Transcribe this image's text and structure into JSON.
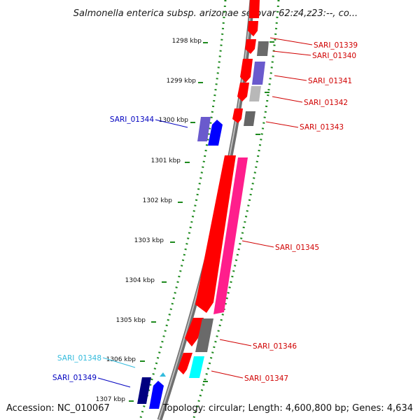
{
  "title": "Salmonella enterica subsp. arizonae serovar 62:z4,z23:--, co...",
  "footer": {
    "accession": "Accession: NC_010067",
    "summary": "Topology: circular; Length: 4,600,800 bp; Genes: 4,634"
  },
  "ticks": [
    "1298 kbp",
    "1299 kbp",
    "1300 kbp",
    "1301 kbp",
    "1302 kbp",
    "1303 kbp",
    "1304 kbp",
    "1305 kbp",
    "1306 kbp",
    "1307 kbp"
  ],
  "gene_labels": [
    {
      "text": "SARI_01339",
      "color": "#d00000"
    },
    {
      "text": "SARI_01340",
      "color": "#d00000"
    },
    {
      "text": "SARI_01341",
      "color": "#d00000"
    },
    {
      "text": "SARI_01342",
      "color": "#d00000"
    },
    {
      "text": "SARI_01343",
      "color": "#d00000"
    },
    {
      "text": "SARI_01344",
      "color": "#0000c0"
    },
    {
      "text": "SARI_01345",
      "color": "#d00000"
    },
    {
      "text": "SARI_01346",
      "color": "#d00000"
    },
    {
      "text": "SARI_01347",
      "color": "#d00000"
    },
    {
      "text": "SARI_01348",
      "color": "#33bbdd"
    },
    {
      "text": "SARI_01349",
      "color": "#0000c0"
    }
  ],
  "colors": {
    "backbone": "#888888",
    "ruler": "#1e8a1e",
    "red": "#ff0000",
    "gray": "#6e6e6e",
    "blue": "#0000ff",
    "purple": "#6a5acd",
    "pink": "#ff1493",
    "cyan": "#00ffff",
    "navy": "#000080"
  }
}
